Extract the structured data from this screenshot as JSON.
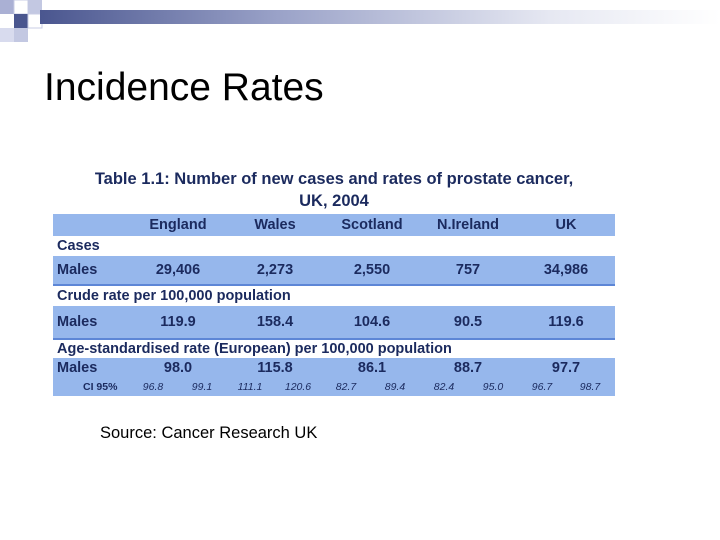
{
  "slide": {
    "title": "Incidence Rates",
    "source": "Source: Cancer Research UK",
    "colors": {
      "accent": "#4a568f",
      "table_band": "#96b7ec",
      "table_text": "#1b2a5e"
    }
  },
  "table": {
    "title_line1": "Table 1.1: Number of new cases and rates of prostate cancer,",
    "title_line2": "UK, 2004",
    "columns": [
      "",
      "England",
      "Wales",
      "Scotland",
      "N.Ireland",
      "UK"
    ],
    "sections": [
      {
        "label": "Cases",
        "row_label": "Males",
        "values": [
          "29,406",
          "2,273",
          "2,550",
          "757",
          "34,986"
        ]
      },
      {
        "label": "Crude rate per 100,000 population",
        "row_label": "Males",
        "values": [
          "119.9",
          "158.4",
          "104.6",
          "90.5",
          "119.6"
        ]
      },
      {
        "label": "Age-standardised rate (European) per 100,000 population",
        "row_label": "Males",
        "values": [
          "98.0",
          "115.8",
          "86.1",
          "88.7",
          "97.7"
        ]
      }
    ],
    "ci": {
      "label": "CI 95%",
      "values": [
        "96.8",
        "99.1",
        "111.1",
        "120.6",
        "82.7",
        "89.4",
        "82.4",
        "95.0",
        "96.7",
        "98.7"
      ]
    }
  }
}
